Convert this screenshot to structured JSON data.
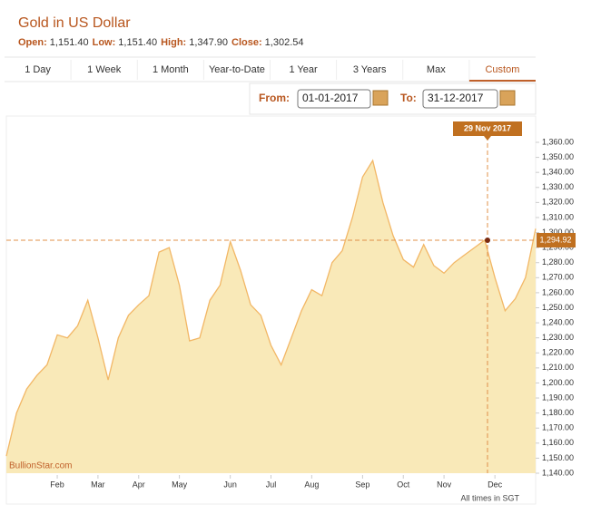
{
  "header": {
    "title": "Gold in US Dollar",
    "stats": [
      {
        "label": "Open:",
        "value": "1,151.40"
      },
      {
        "label": "Low:",
        "value": "1,151.40"
      },
      {
        "label": "High:",
        "value": "1,347.90"
      },
      {
        "label": "Close:",
        "value": "1,302.54"
      }
    ]
  },
  "tabs": [
    "1 Day",
    "1 Week",
    "1 Month",
    "Year-to-Date",
    "1 Year",
    "3 Years",
    "Max",
    "Custom"
  ],
  "selected_tab": "Custom",
  "date_range": {
    "from_label": "From:",
    "from": "01-01-2017",
    "to_label": "To:",
    "to": "31-12-2017"
  },
  "chart_data": {
    "type": "area",
    "color": "#f2b766",
    "fill": "#f9e9b8",
    "categories": [
      null,
      null,
      null,
      null,
      null,
      "Feb",
      null,
      null,
      null,
      "Mar",
      null,
      null,
      null,
      "Apr",
      null,
      null,
      null,
      "May",
      null,
      null,
      null,
      null,
      "Jun",
      null,
      null,
      null,
      "Jul",
      null,
      null,
      null,
      "Aug",
      null,
      null,
      null,
      null,
      "Sep",
      null,
      null,
      null,
      "Oct",
      null,
      null,
      null,
      "Nov",
      null,
      null,
      null,
      null,
      "Dec",
      null,
      null,
      null,
      null
    ],
    "values": [
      1151.4,
      1180,
      1196,
      1205,
      1212,
      1232,
      1230,
      1238,
      1255,
      1230,
      1202,
      1230,
      1245,
      1252,
      1258,
      1287,
      1290,
      1265,
      1228,
      1230,
      1255,
      1265,
      1294,
      1275,
      1252,
      1245,
      1225,
      1212,
      1230,
      1248,
      1262,
      1258,
      1280,
      1288,
      1310,
      1337,
      1347.9,
      1320,
      1298,
      1282,
      1277,
      1292,
      1278,
      1273,
      1280,
      1285,
      1290,
      1295,
      1270,
      1248,
      1256,
      1270,
      1302.54
    ],
    "ylim": [
      1140,
      1360
    ],
    "yticks": [
      {
        "value": 1140,
        "label": "1,140.00"
      },
      {
        "value": 1150,
        "label": "1,150.00"
      },
      {
        "value": 1160,
        "label": "1,160.00"
      },
      {
        "value": 1170,
        "label": "1,170.00"
      },
      {
        "value": 1180,
        "label": "1,180.00"
      },
      {
        "value": 1190,
        "label": "1,190.00"
      },
      {
        "value": 1200,
        "label": "1,200.00"
      },
      {
        "value": 1210,
        "label": "1,210.00"
      },
      {
        "value": 1220,
        "label": "1,220.00"
      },
      {
        "value": 1230,
        "label": "1,230.00"
      },
      {
        "value": 1240,
        "label": "1,240.00"
      },
      {
        "value": 1250,
        "label": "1,250.00"
      },
      {
        "value": 1260,
        "label": "1,260.00"
      },
      {
        "value": 1270,
        "label": "1,270.00"
      },
      {
        "value": 1280,
        "label": "1,280.00"
      },
      {
        "value": 1290,
        "label": "1,290.00"
      },
      {
        "value": 1300,
        "label": "1,300.00"
      },
      {
        "value": 1310,
        "label": "1,310.00"
      },
      {
        "value": 1320,
        "label": "1,320.00"
      },
      {
        "value": 1330,
        "label": "1,330.00"
      },
      {
        "value": 1340,
        "label": "1,340.00"
      },
      {
        "value": 1350,
        "label": "1,350.00"
      },
      {
        "value": 1360,
        "label": "1,360.00"
      }
    ],
    "crosshair": {
      "label": "29 Nov 2017",
      "value": 1294.92,
      "value_label": "1,294.92"
    },
    "watermark": "BullionStar.com",
    "footnote": "All times in SGT"
  }
}
